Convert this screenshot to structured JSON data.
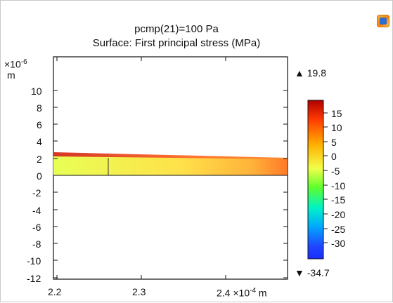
{
  "window": {
    "title_line1": "pcmp(21)=100 Pa",
    "title_line2": "Surface: First principal stress (MPa)"
  },
  "toolbar": {
    "icon": "comsol-icon"
  },
  "axes": {
    "y_unit_exp": "×10",
    "y_unit_exp_power": "-6",
    "y_unit": "m",
    "x_unit_text": "2.4 ×10",
    "x_unit_power": "-4",
    "x_unit": "m",
    "y_ticks": [
      "10",
      "8",
      "6",
      "4",
      "2",
      "0",
      "-2",
      "-4",
      "-6",
      "-8",
      "-10",
      "-12"
    ],
    "x_ticks": [
      "2.2",
      "2.3"
    ]
  },
  "colorbar": {
    "max_label": "▲ 19.8",
    "min_label": "▼ -34.7",
    "ticks": [
      "15",
      "10",
      "5",
      "0",
      "-5",
      "-10",
      "-15",
      "-20",
      "-25",
      "-30"
    ]
  }
}
